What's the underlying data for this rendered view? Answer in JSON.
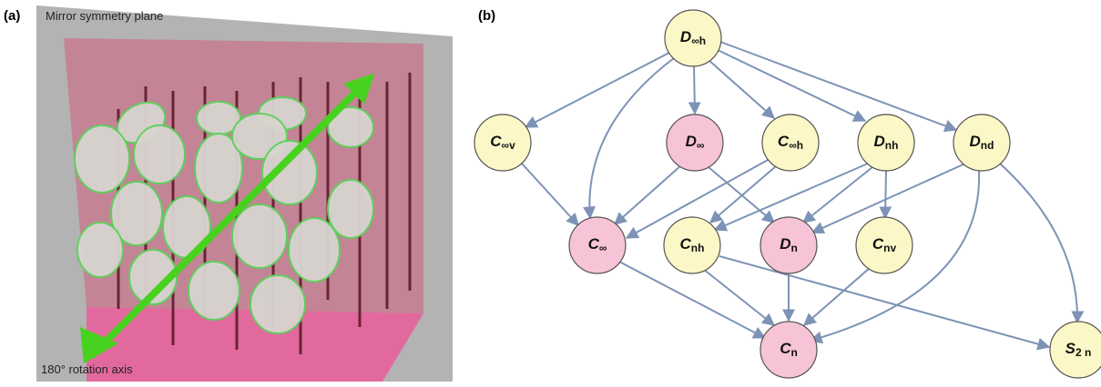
{
  "panel_a": {
    "label": "(a)",
    "plane_label": "Mirror symmetry plane",
    "axis_label": "180° rotation axis"
  },
  "panel_b": {
    "label": "(b)",
    "nodes": [
      {
        "main": "D",
        "sub": "∞h"
      },
      {
        "main": "C",
        "sub": "∞v"
      },
      {
        "main": "D",
        "sub": "∞"
      },
      {
        "main": "C",
        "sub": "∞h"
      },
      {
        "main": "D",
        "sub": "nh"
      },
      {
        "main": "D",
        "sub": "nd"
      },
      {
        "main": "C",
        "sub": "∞"
      },
      {
        "main": "C",
        "sub": "nh"
      },
      {
        "main": "D",
        "sub": "n"
      },
      {
        "main": "C",
        "sub": "nv"
      },
      {
        "main": "C",
        "sub": "n"
      },
      {
        "main": "S",
        "sub": "2 n"
      }
    ]
  }
}
